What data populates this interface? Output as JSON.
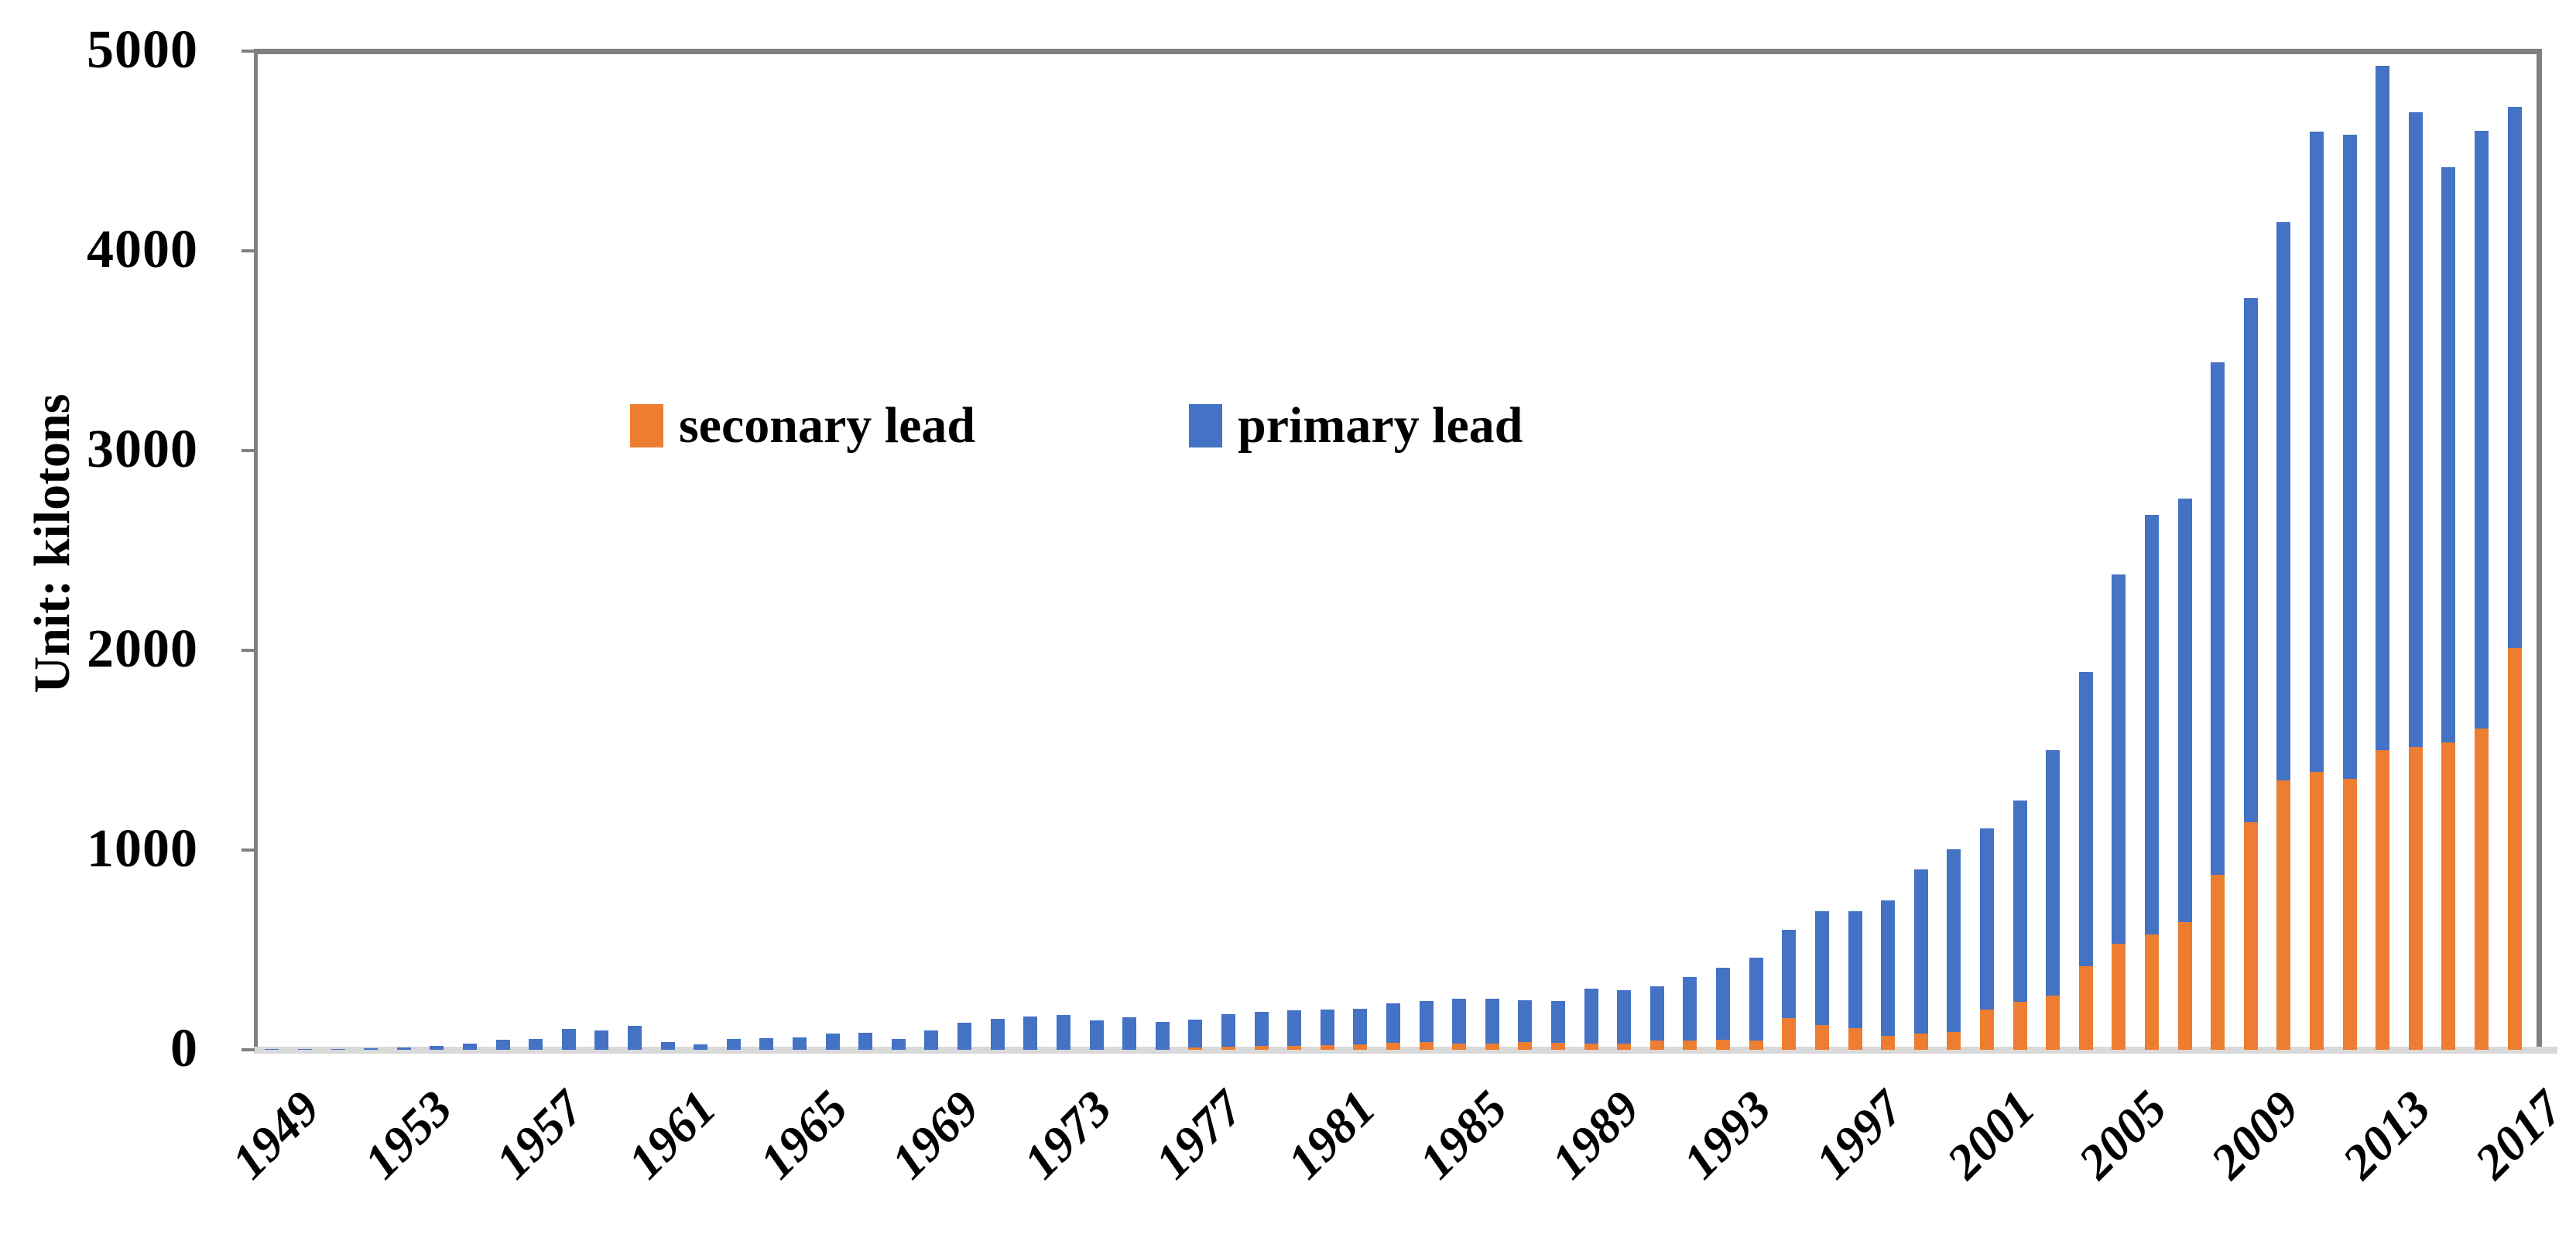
{
  "chart_data": {
    "type": "bar",
    "stacked": true,
    "ylabel": "Unit: kilotons",
    "ylim": [
      0,
      5000
    ],
    "y_ticks": [
      0,
      1000,
      2000,
      3000,
      4000,
      5000
    ],
    "grid": false,
    "legend_position": "inside-top",
    "categories": [
      1949,
      1950,
      1951,
      1952,
      1953,
      1954,
      1955,
      1956,
      1957,
      1958,
      1959,
      1960,
      1961,
      1962,
      1963,
      1964,
      1965,
      1966,
      1967,
      1968,
      1969,
      1970,
      1971,
      1972,
      1973,
      1974,
      1975,
      1976,
      1977,
      1978,
      1979,
      1980,
      1981,
      1982,
      1983,
      1984,
      1985,
      1986,
      1987,
      1988,
      1989,
      1990,
      1991,
      1992,
      1993,
      1994,
      1995,
      1996,
      1997,
      1998,
      1999,
      2000,
      2001,
      2002,
      2003,
      2004,
      2005,
      2006,
      2007,
      2008,
      2009,
      2010,
      2011,
      2012,
      2013,
      2014,
      2015,
      2016,
      2017
    ],
    "x_tick_labels": [
      "1949",
      "1953",
      "1957",
      "1961",
      "1965",
      "1969",
      "1973",
      "1977",
      "1981",
      "1985",
      "1989",
      "1993",
      "1997",
      "2001",
      "2005",
      "2009",
      "2013",
      "2017"
    ],
    "series": [
      {
        "name": "seconary lead",
        "color": "#ED7D31",
        "values": [
          0,
          0,
          0,
          0,
          0,
          0,
          0,
          0,
          0,
          0,
          0,
          0,
          0,
          0,
          0,
          0,
          0,
          0,
          0,
          0,
          0,
          0,
          0,
          0,
          0,
          0,
          0,
          0,
          10,
          15,
          18,
          18,
          22,
          28,
          35,
          38,
          30,
          30,
          38,
          35,
          30,
          32,
          45,
          48,
          50,
          45,
          160,
          124,
          108,
          70,
          80,
          90,
          200,
          240,
          272,
          420,
          530,
          577,
          640,
          875,
          1140,
          1350,
          1390,
          1355,
          1500,
          1515,
          1540,
          1610,
          2010
        ]
      },
      {
        "name": "primary lead",
        "color": "#4472C4",
        "values": [
          2,
          3,
          5,
          6,
          10,
          20,
          32,
          49,
          56,
          105,
          95,
          119,
          40,
          28,
          55,
          58,
          62,
          80,
          86,
          55,
          97,
          135,
          155,
          165,
          175,
          148,
          163,
          138,
          142,
          163,
          172,
          179,
          179,
          177,
          197,
          206,
          225,
          225,
          209,
          209,
          276,
          266,
          273,
          316,
          360,
          417,
          440,
          569,
          585,
          678,
          825,
          915,
          910,
          1010,
          1228,
          1470,
          1850,
          2103,
          2120,
          2565,
          2625,
          2795,
          3205,
          3225,
          3425,
          3180,
          2880,
          2990,
          2710
        ]
      }
    ],
    "colors": {
      "axis_frame": "#808080",
      "baseline": "#D9D9D9",
      "text": "#000000"
    }
  }
}
